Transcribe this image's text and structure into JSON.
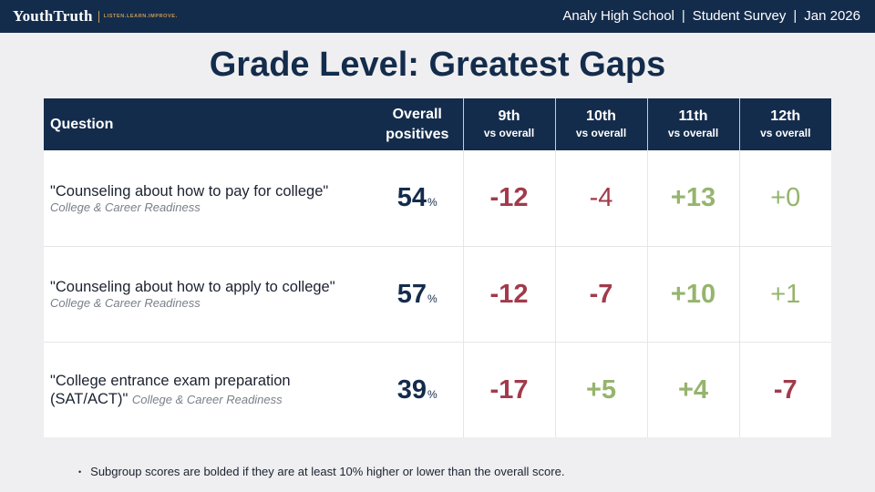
{
  "header": {
    "logo_name": "YouthTruth",
    "logo_tagline": "LISTEN.LEARN.IMPROVE.",
    "school": "Analy High School",
    "survey": "Student Survey",
    "date": "Jan 2026",
    "separator": "|"
  },
  "title": "Grade Level: Greatest Gaps",
  "table": {
    "headers": {
      "question": "Question",
      "overall_line1": "Overall",
      "overall_line2": "positives",
      "grades": [
        {
          "grade": "9th",
          "vs": "vs overall"
        },
        {
          "grade": "10th",
          "vs": "vs overall"
        },
        {
          "grade": "11th",
          "vs": "vs overall"
        },
        {
          "grade": "12th",
          "vs": "vs overall"
        }
      ]
    },
    "rows": [
      {
        "question": "\"Counseling about how to pay for college\"",
        "category": "College & Career Readiness",
        "overall": "54",
        "pct": "%",
        "scores": [
          {
            "value": "-12",
            "tone": "negative",
            "bold": true
          },
          {
            "value": "-4",
            "tone": "negative",
            "bold": false
          },
          {
            "value": "+13",
            "tone": "positive",
            "bold": true
          },
          {
            "value": "+0",
            "tone": "positive",
            "bold": false
          }
        ]
      },
      {
        "question": "\"Counseling about how to apply to college\"",
        "category": "College & Career Readiness",
        "overall": "57",
        "pct": "%",
        "scores": [
          {
            "value": "-12",
            "tone": "negative",
            "bold": true
          },
          {
            "value": "-7",
            "tone": "negative",
            "bold": true
          },
          {
            "value": "+10",
            "tone": "positive",
            "bold": true
          },
          {
            "value": "+1",
            "tone": "positive",
            "bold": false
          }
        ]
      },
      {
        "question": "\"College entrance exam preparation (SAT/ACT)\"",
        "category": "College & Career Readiness",
        "overall": "39",
        "pct": "%",
        "scores": [
          {
            "value": "-17",
            "tone": "negative",
            "bold": true
          },
          {
            "value": "+5",
            "tone": "positive",
            "bold": true
          },
          {
            "value": "+4",
            "tone": "positive",
            "bold": true
          },
          {
            "value": "-7",
            "tone": "negative",
            "bold": true
          }
        ]
      }
    ]
  },
  "footnote": "Subgroup scores are bolded if they are at least 10% higher or lower than the overall score.",
  "colors": {
    "navy": "#142c4c",
    "negative": "#a23a4b",
    "positive": "#96b46e",
    "accent_gold": "#c79a52"
  }
}
